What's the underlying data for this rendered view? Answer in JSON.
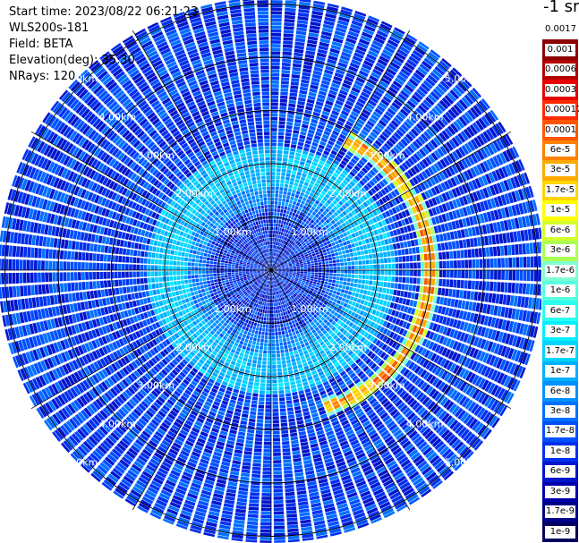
{
  "info": {
    "start_time": "Start time: 2023/08/22 06:21:23",
    "device": "WLS200s-181",
    "field": "Field: BETA",
    "elevation": "Elevation(deg): 35.30",
    "nrays": "NRays: 120"
  },
  "colorbar": {
    "unit_label": "-1 sr",
    "labels": [
      "0.0017",
      "0.001",
      "0.0006",
      "0.0003",
      "0.00017",
      "0.0001",
      "6e-5",
      "3e-5",
      "1.7e-5",
      "1e-5",
      "6e-6",
      "3e-6",
      "1.7e-6",
      "1e-6",
      "6e-7",
      "3e-7",
      "1.7e-7",
      "1e-7",
      "6e-8",
      "3e-8",
      "1.7e-8",
      "1e-8",
      "6e-9",
      "3e-9",
      "1.7e-9",
      "1e-9"
    ],
    "colors": [
      "#ffffff",
      "#8b0000",
      "#b30000",
      "#e60000",
      "#ff2a00",
      "#ff5500",
      "#ff8000",
      "#ffaa00",
      "#ffd400",
      "#ffff00",
      "#d4ff2b",
      "#aaff55",
      "#80ffd0",
      "#55ffe0",
      "#2bffee",
      "#00f0ff",
      "#00d4ff",
      "#00b0ff",
      "#0090ff",
      "#0070ff",
      "#0050ff",
      "#0030ee",
      "#0015cc",
      "#0000aa",
      "#000088",
      "#00005e"
    ]
  },
  "chart_data": {
    "type": "heatmap",
    "projection": "polar (PPI scan)",
    "rays": 120,
    "range_rings_km": [
      1,
      2,
      3,
      4,
      5
    ],
    "range_ring_labels": [
      "1.00km",
      "2.00km",
      "3.00km",
      "4.00km",
      "5.00km"
    ],
    "max_range_km": 5.1,
    "colorbar_scale": "log",
    "colorbar_range": [
      1e-09,
      0.0017
    ],
    "typical_background": "1e-8 to 3e-8",
    "inner_ring_region_km": [
      1.6,
      2.3
    ],
    "inner_ring_value": "1e-7 to 3e-7",
    "high_backscatter_arc": {
      "range_km": [
        2.8,
        3.1
      ],
      "azimuth_deg_clockwise_from_north": [
        30,
        160
      ],
      "peak_value": "6e-5 to 1e-4"
    }
  }
}
